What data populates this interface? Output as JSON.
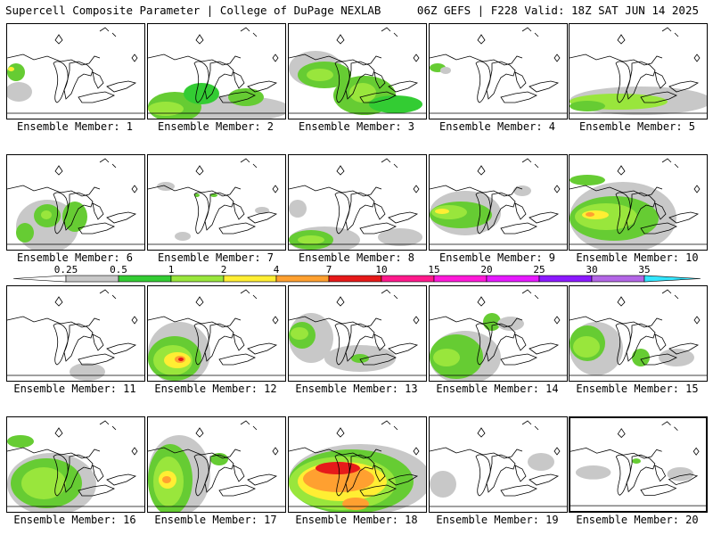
{
  "header": {
    "left": "Supercell Composite Parameter | College of DuPage NEXLAB",
    "right": "06Z GEFS | F228 Valid: 18Z SAT JUN 14 2025"
  },
  "member_prefix": "Ensemble Member: ",
  "members": [
    {
      "id": "1",
      "blobs": [
        {
          "c": "#c8c8c8",
          "x": -2,
          "y": 65,
          "w": 30,
          "h": 22
        },
        {
          "c": "#66cc33",
          "x": 0,
          "y": 44,
          "w": 20,
          "h": 20
        },
        {
          "c": "#ffee33",
          "x": 1,
          "y": 48,
          "w": 7,
          "h": 5
        }
      ]
    },
    {
      "id": "2",
      "blobs": [
        {
          "c": "#c8c8c8",
          "x": 20,
          "y": 80,
          "w": 140,
          "h": 30
        },
        {
          "c": "#66cc33",
          "x": 0,
          "y": 76,
          "w": 60,
          "h": 34
        },
        {
          "c": "#99e63c",
          "x": 0,
          "y": 87,
          "w": 40,
          "h": 16
        },
        {
          "c": "#33cc33",
          "x": 40,
          "y": 66,
          "w": 40,
          "h": 24
        },
        {
          "c": "#66cc33",
          "x": 90,
          "y": 72,
          "w": 40,
          "h": 20
        }
      ]
    },
    {
      "id": "3",
      "blobs": [
        {
          "c": "#c8c8c8",
          "x": 0,
          "y": 30,
          "w": 60,
          "h": 40
        },
        {
          "c": "#66cc33",
          "x": 10,
          "y": 42,
          "w": 60,
          "h": 30
        },
        {
          "c": "#99e63c",
          "x": 20,
          "y": 50,
          "w": 30,
          "h": 14
        },
        {
          "c": "#66cc33",
          "x": 50,
          "y": 58,
          "w": 70,
          "h": 44
        },
        {
          "c": "#99e63c",
          "x": 68,
          "y": 66,
          "w": 30,
          "h": 22
        },
        {
          "c": "#33cc33",
          "x": 90,
          "y": 80,
          "w": 60,
          "h": 20
        }
      ]
    },
    {
      "id": "4",
      "blobs": [
        {
          "c": "#66cc33",
          "x": 0,
          "y": 44,
          "w": 18,
          "h": 10
        },
        {
          "c": "#c8c8c8",
          "x": 12,
          "y": 48,
          "w": 12,
          "h": 8
        }
      ]
    },
    {
      "id": "5",
      "blobs": [
        {
          "c": "#c8c8c8",
          "x": 0,
          "y": 70,
          "w": 160,
          "h": 32
        },
        {
          "c": "#99e63c",
          "x": 0,
          "y": 78,
          "w": 110,
          "h": 18
        },
        {
          "c": "#66cc33",
          "x": 0,
          "y": 86,
          "w": 40,
          "h": 12
        }
      ]
    },
    {
      "id": "6",
      "blobs": [
        {
          "c": "#c8c8c8",
          "x": 10,
          "y": 50,
          "w": 70,
          "h": 60
        },
        {
          "c": "#66cc33",
          "x": 30,
          "y": 55,
          "w": 30,
          "h": 26
        },
        {
          "c": "#99e63c",
          "x": 38,
          "y": 62,
          "w": 12,
          "h": 10
        },
        {
          "c": "#66cc33",
          "x": 62,
          "y": 52,
          "w": 28,
          "h": 34
        },
        {
          "c": "#66cc33",
          "x": 10,
          "y": 76,
          "w": 20,
          "h": 22
        }
      ]
    },
    {
      "id": "7",
      "blobs": [
        {
          "c": "#66cc33",
          "x": 52,
          "y": 43,
          "w": 6,
          "h": 4
        },
        {
          "c": "#66cc33",
          "x": 70,
          "y": 43,
          "w": 8,
          "h": 4
        },
        {
          "c": "#c8c8c8",
          "x": 10,
          "y": 30,
          "w": 20,
          "h": 10
        },
        {
          "c": "#c8c8c8",
          "x": 30,
          "y": 86,
          "w": 18,
          "h": 10
        },
        {
          "c": "#c8c8c8",
          "x": 120,
          "y": 58,
          "w": 16,
          "h": 8
        }
      ]
    },
    {
      "id": "8",
      "blobs": [
        {
          "c": "#c8c8c8",
          "x": 0,
          "y": 80,
          "w": 80,
          "h": 30
        },
        {
          "c": "#66cc33",
          "x": 0,
          "y": 84,
          "w": 50,
          "h": 22
        },
        {
          "c": "#99e63c",
          "x": 10,
          "y": 90,
          "w": 30,
          "h": 10
        },
        {
          "c": "#c8c8c8",
          "x": 0,
          "y": 50,
          "w": 20,
          "h": 20
        },
        {
          "c": "#c8c8c8",
          "x": 100,
          "y": 82,
          "w": 50,
          "h": 20
        }
      ]
    },
    {
      "id": "9",
      "blobs": [
        {
          "c": "#c8c8c8",
          "x": 0,
          "y": 40,
          "w": 80,
          "h": 50
        },
        {
          "c": "#66cc33",
          "x": 0,
          "y": 52,
          "w": 70,
          "h": 30
        },
        {
          "c": "#99e63c",
          "x": 2,
          "y": 56,
          "w": 40,
          "h": 16
        },
        {
          "c": "#ffee33",
          "x": 6,
          "y": 60,
          "w": 16,
          "h": 6
        },
        {
          "c": "#c8c8c8",
          "x": 94,
          "y": 34,
          "w": 20,
          "h": 12
        }
      ]
    },
    {
      "id": "10",
      "blobs": [
        {
          "c": "#c8c8c8",
          "x": 0,
          "y": 30,
          "w": 120,
          "h": 80
        },
        {
          "c": "#66cc33",
          "x": 0,
          "y": 46,
          "w": 100,
          "h": 50
        },
        {
          "c": "#99e63c",
          "x": 6,
          "y": 54,
          "w": 70,
          "h": 30
        },
        {
          "c": "#ffee33",
          "x": 14,
          "y": 62,
          "w": 30,
          "h": 10
        },
        {
          "c": "#ffa030",
          "x": 18,
          "y": 64,
          "w": 10,
          "h": 5
        },
        {
          "c": "#66cc33",
          "x": 0,
          "y": 22,
          "w": 40,
          "h": 12
        }
      ]
    },
    {
      "id": "11",
      "blobs": [
        {
          "c": "#c8c8c8",
          "x": 70,
          "y": 86,
          "w": 40,
          "h": 20
        }
      ]
    },
    {
      "id": "12",
      "blobs": [
        {
          "c": "#c8c8c8",
          "x": 0,
          "y": 40,
          "w": 70,
          "h": 70
        },
        {
          "c": "#66cc33",
          "x": 0,
          "y": 56,
          "w": 60,
          "h": 50
        },
        {
          "c": "#99e63c",
          "x": 6,
          "y": 66,
          "w": 44,
          "h": 34
        },
        {
          "c": "#ffee33",
          "x": 18,
          "y": 74,
          "w": 30,
          "h": 18
        },
        {
          "c": "#ffa030",
          "x": 30,
          "y": 78,
          "w": 12,
          "h": 8
        },
        {
          "c": "#e61a1a",
          "x": 34,
          "y": 80,
          "w": 6,
          "h": 4
        }
      ]
    },
    {
      "id": "13",
      "blobs": [
        {
          "c": "#c8c8c8",
          "x": 0,
          "y": 30,
          "w": 50,
          "h": 56
        },
        {
          "c": "#66cc33",
          "x": 0,
          "y": 40,
          "w": 30,
          "h": 30
        },
        {
          "c": "#99e63c",
          "x": 2,
          "y": 46,
          "w": 20,
          "h": 14
        },
        {
          "c": "#c8c8c8",
          "x": 40,
          "y": 66,
          "w": 80,
          "h": 30
        },
        {
          "c": "#66cc33",
          "x": 70,
          "y": 76,
          "w": 20,
          "h": 10
        }
      ]
    },
    {
      "id": "14",
      "blobs": [
        {
          "c": "#c8c8c8",
          "x": 0,
          "y": 50,
          "w": 80,
          "h": 60
        },
        {
          "c": "#66cc33",
          "x": 0,
          "y": 54,
          "w": 60,
          "h": 50
        },
        {
          "c": "#99e63c",
          "x": 4,
          "y": 70,
          "w": 30,
          "h": 20
        },
        {
          "c": "#66cc33",
          "x": 60,
          "y": 30,
          "w": 20,
          "h": 20
        },
        {
          "c": "#c8c8c8",
          "x": 76,
          "y": 34,
          "w": 30,
          "h": 16
        }
      ]
    },
    {
      "id": "15",
      "blobs": [
        {
          "c": "#c8c8c8",
          "x": 0,
          "y": 40,
          "w": 60,
          "h": 60
        },
        {
          "c": "#66cc33",
          "x": 0,
          "y": 44,
          "w": 40,
          "h": 40
        },
        {
          "c": "#99e63c",
          "x": 4,
          "y": 56,
          "w": 30,
          "h": 24
        },
        {
          "c": "#66cc33",
          "x": 70,
          "y": 70,
          "w": 20,
          "h": 20
        },
        {
          "c": "#c8c8c8",
          "x": 100,
          "y": 70,
          "w": 40,
          "h": 20
        }
      ]
    },
    {
      "id": "16",
      "blobs": [
        {
          "c": "#c8c8c8",
          "x": 0,
          "y": 40,
          "w": 100,
          "h": 70
        },
        {
          "c": "#66cc33",
          "x": 4,
          "y": 46,
          "w": 80,
          "h": 56
        },
        {
          "c": "#99e63c",
          "x": 16,
          "y": 56,
          "w": 50,
          "h": 36
        },
        {
          "c": "#66cc33",
          "x": 0,
          "y": 20,
          "w": 30,
          "h": 14
        }
      ]
    },
    {
      "id": "17",
      "blobs": [
        {
          "c": "#c8c8c8",
          "x": 0,
          "y": 20,
          "w": 70,
          "h": 90
        },
        {
          "c": "#66cc33",
          "x": 0,
          "y": 30,
          "w": 50,
          "h": 80
        },
        {
          "c": "#99e63c",
          "x": 6,
          "y": 44,
          "w": 34,
          "h": 56
        },
        {
          "c": "#ffee33",
          "x": 12,
          "y": 60,
          "w": 20,
          "h": 20
        },
        {
          "c": "#ffa030",
          "x": 16,
          "y": 66,
          "w": 10,
          "h": 8
        },
        {
          "c": "#66cc33",
          "x": 70,
          "y": 40,
          "w": 20,
          "h": 14
        }
      ]
    },
    {
      "id": "18",
      "blobs": [
        {
          "c": "#c8c8c8",
          "x": 0,
          "y": 30,
          "w": 160,
          "h": 80
        },
        {
          "c": "#66cc33",
          "x": 0,
          "y": 36,
          "w": 140,
          "h": 72
        },
        {
          "c": "#99e63c",
          "x": 0,
          "y": 44,
          "w": 120,
          "h": 60
        },
        {
          "c": "#ffee33",
          "x": 10,
          "y": 50,
          "w": 100,
          "h": 44
        },
        {
          "c": "#ffa030",
          "x": 16,
          "y": 54,
          "w": 80,
          "h": 30
        },
        {
          "c": "#e61a1a",
          "x": 30,
          "y": 50,
          "w": 50,
          "h": 14
        },
        {
          "c": "#ffa030",
          "x": 60,
          "y": 90,
          "w": 30,
          "h": 14
        }
      ]
    },
    {
      "id": "19",
      "blobs": [
        {
          "c": "#c8c8c8",
          "x": 0,
          "y": 60,
          "w": 30,
          "h": 30
        },
        {
          "c": "#c8c8c8",
          "x": 110,
          "y": 40,
          "w": 30,
          "h": 20
        }
      ]
    },
    {
      "id": "20",
      "blobs": [
        {
          "c": "#c8c8c8",
          "x": 6,
          "y": 54,
          "w": 40,
          "h": 16
        },
        {
          "c": "#66cc33",
          "x": 70,
          "y": 46,
          "w": 10,
          "h": 6
        },
        {
          "c": "#c8c8c8",
          "x": 110,
          "y": 56,
          "w": 30,
          "h": 16
        }
      ]
    }
  ],
  "colorbar": {
    "ticks": [
      "0.25",
      "0.5",
      "1",
      "2",
      "4",
      "7",
      "10",
      "15",
      "20",
      "25",
      "30",
      "35"
    ],
    "colors": [
      "#c8c8c8",
      "#33cc33",
      "#99e63c",
      "#ffee33",
      "#ffa030",
      "#e61a1a",
      "#ff1a8c",
      "#ff1ad9",
      "#e61aff",
      "#8c1aff",
      "#b366e6"
    ],
    "over_color": "#33e6ff"
  }
}
